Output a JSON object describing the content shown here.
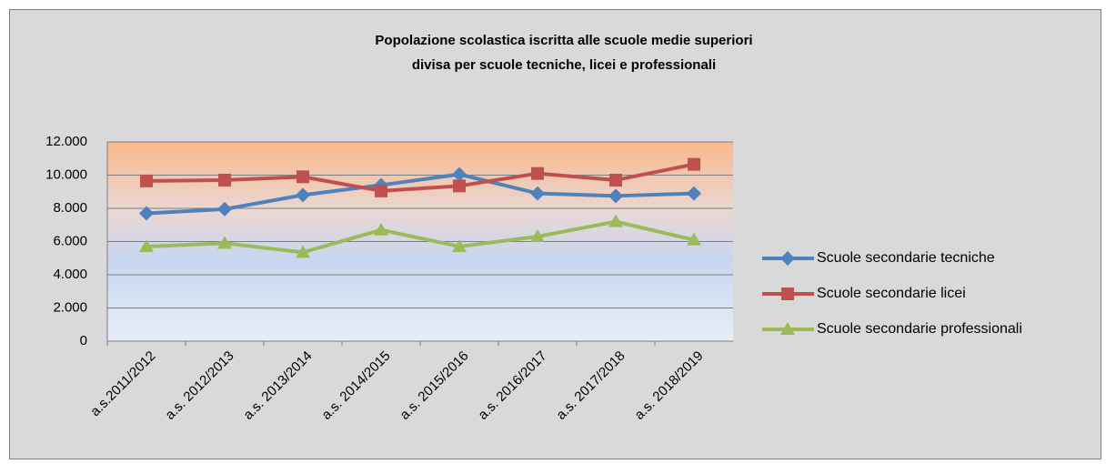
{
  "chart_data": {
    "type": "line",
    "title": [
      "Popolazione scolastica iscritta alle scuole medie superiori",
      "divisa per scuole tecniche, licei e professionali"
    ],
    "categories": [
      "a.s.2011/2012",
      "a.s. 2012/2013",
      "a.s. 2013/2014",
      "a.s. 2014/2015",
      "a.s. 2015/2016",
      "a.s. 2016/2017",
      "a.s. 2017/2018",
      "a.s. 2018/2019"
    ],
    "series": [
      {
        "name": "Scuole secondarie tecniche",
        "color": "#4f81bd",
        "marker": "diamond",
        "values": [
          7700,
          7950,
          8800,
          9400,
          10050,
          8900,
          8750,
          8900
        ]
      },
      {
        "name": "Scuole secondarie licei",
        "color": "#c0504d",
        "marker": "square",
        "values": [
          9650,
          9700,
          9900,
          9050,
          9350,
          10100,
          9700,
          10650
        ]
      },
      {
        "name": "Scuole secondarie professionali",
        "color": "#9bbb59",
        "marker": "triangle",
        "values": [
          5700,
          5900,
          5350,
          6700,
          5700,
          6300,
          7200,
          6100
        ]
      }
    ],
    "ylim": [
      0,
      12000
    ],
    "yticks": [
      0,
      {
        "value": 2000,
        "label": "2.000"
      },
      {
        "value": 4000,
        "label": "4.000"
      },
      {
        "value": 6000,
        "label": "6.000"
      },
      {
        "value": 8000,
        "label": "8.000"
      },
      {
        "value": 10000,
        "label": "10.000"
      },
      {
        "value": 12000,
        "label": "12.000"
      }
    ],
    "grid": true,
    "legend": "right"
  }
}
